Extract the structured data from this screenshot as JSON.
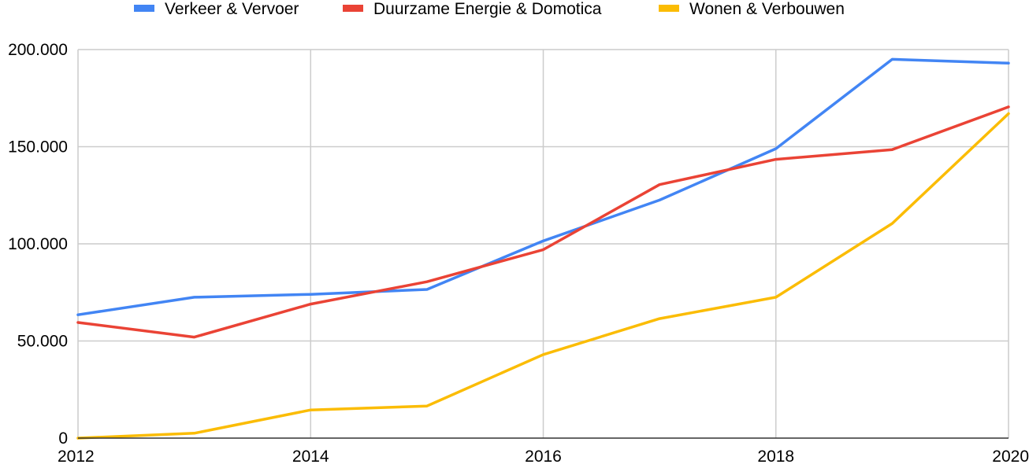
{
  "chart_data": {
    "type": "line",
    "title": "",
    "xlabel": "",
    "ylabel": "",
    "x": [
      2012,
      2013,
      2014,
      2015,
      2016,
      2017,
      2018,
      2019,
      2020
    ],
    "xlim": [
      2012,
      2020
    ],
    "ylim": [
      0,
      200000
    ],
    "x_ticks": [
      "2012",
      "2014",
      "2016",
      "2018",
      "2020"
    ],
    "y_ticks": [
      "0",
      "50.000",
      "100.000",
      "150.000",
      "200.000"
    ],
    "grid": true,
    "legend_position": "top",
    "series": [
      {
        "name": "Verkeer & Vervoer",
        "color": "#4285f4",
        "values": [
          63500,
          72500,
          74000,
          76500,
          101500,
          122500,
          149000,
          195000,
          193000
        ]
      },
      {
        "name": "Duurzame Energie & Domotica",
        "color": "#ea4335",
        "values": [
          59500,
          52000,
          69000,
          80500,
          97000,
          130500,
          143500,
          148500,
          170500
        ]
      },
      {
        "name": "Wonen & Verbouwen",
        "color": "#fbbc04",
        "values": [
          0,
          2500,
          14500,
          16500,
          43000,
          61500,
          72500,
          110500,
          167000
        ]
      }
    ]
  }
}
